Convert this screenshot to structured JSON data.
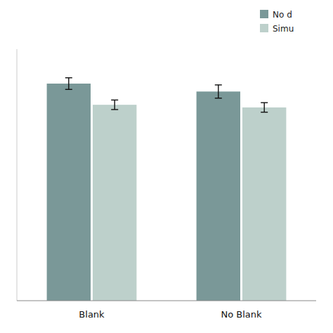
{
  "chart_data": {
    "type": "bar",
    "categories": [
      "Blank",
      "No Blank"
    ],
    "series": [
      {
        "name": "No d",
        "color": "#7a9898",
        "values": [
          0.82,
          0.79
        ],
        "errors": [
          0.022,
          0.025
        ]
      },
      {
        "name": "Simu",
        "color": "#bdd0cb",
        "values": [
          0.74,
          0.73
        ],
        "errors": [
          0.018,
          0.018
        ]
      }
    ],
    "ylim": [
      0.0,
      0.95
    ],
    "tick_labels": "x",
    "legend": "upper right",
    "grid": false
  }
}
